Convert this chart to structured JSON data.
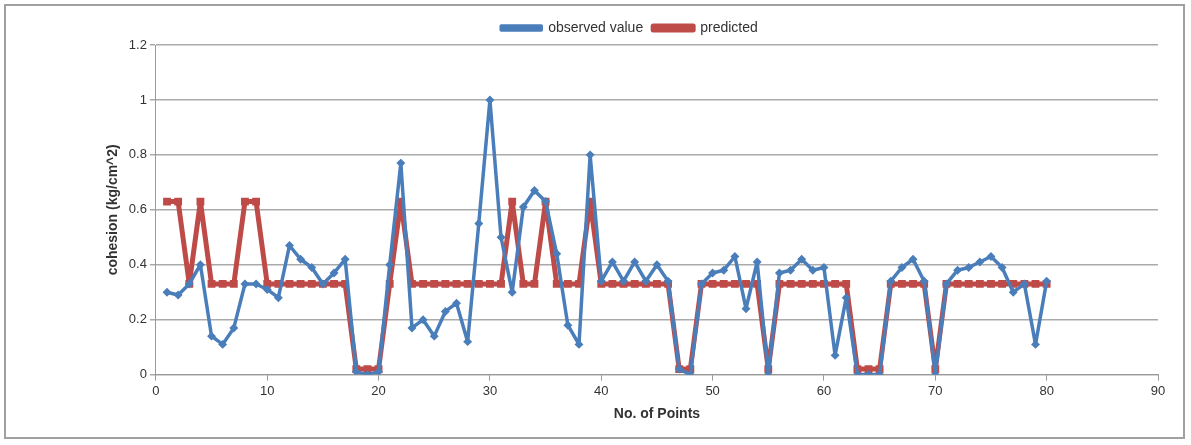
{
  "chart_data": {
    "type": "line",
    "xlabel": "No. of Points",
    "ylabel": "cohesion (kg/cm^2)",
    "x": [
      1,
      2,
      3,
      4,
      5,
      6,
      7,
      8,
      9,
      10,
      11,
      12,
      13,
      14,
      15,
      16,
      17,
      18,
      19,
      20,
      21,
      22,
      23,
      24,
      25,
      26,
      27,
      28,
      29,
      30,
      31,
      32,
      33,
      34,
      35,
      36,
      37,
      38,
      39,
      40,
      41,
      42,
      43,
      44,
      45,
      46,
      47,
      48,
      49,
      50,
      51,
      52,
      53,
      54,
      55,
      56,
      57,
      58,
      59,
      60,
      61,
      62,
      63,
      64,
      65,
      66,
      67,
      68,
      69,
      70,
      71,
      72,
      73,
      74,
      75,
      76,
      77,
      78,
      79,
      80
    ],
    "series": [
      {
        "name": "observed value",
        "color": "#4a7ebb",
        "marker": "diamond",
        "values": [
          0.3,
          0.29,
          0.33,
          0.4,
          0.14,
          0.11,
          0.17,
          0.33,
          0.33,
          0.31,
          0.28,
          0.47,
          0.42,
          0.39,
          0.33,
          0.37,
          0.42,
          0.01,
          0,
          0.01,
          0.4,
          0.77,
          0.17,
          0.2,
          0.14,
          0.23,
          0.26,
          0.12,
          0.55,
          1,
          0.5,
          0.3,
          0.61,
          0.67,
          0.63,
          0.44,
          0.18,
          0.11,
          0.8,
          0.34,
          0.41,
          0.34,
          0.41,
          0.34,
          0.4,
          0.34,
          0.02,
          0,
          0.33,
          0.37,
          0.38,
          0.43,
          0.24,
          0.41,
          0,
          0.37,
          0.38,
          0.42,
          0.38,
          0.39,
          0.07,
          0.28,
          0,
          0,
          0,
          0.34,
          0.39,
          0.42,
          0.34,
          0,
          0.33,
          0.38,
          0.39,
          0.41,
          0.43,
          0.39,
          0.3,
          0.33,
          0.11,
          0.34
        ]
      },
      {
        "name": "predicted",
        "color": "#be4b48",
        "marker": "square",
        "values": [
          0.63,
          0.63,
          0.33,
          0.63,
          0.33,
          0.33,
          0.33,
          0.63,
          0.63,
          0.33,
          0.33,
          0.33,
          0.33,
          0.33,
          0.33,
          0.33,
          0.33,
          0.02,
          0.02,
          0.02,
          0.33,
          0.63,
          0.33,
          0.33,
          0.33,
          0.33,
          0.33,
          0.33,
          0.33,
          0.33,
          0.33,
          0.63,
          0.33,
          0.33,
          0.63,
          0.33,
          0.33,
          0.33,
          0.63,
          0.33,
          0.33,
          0.33,
          0.33,
          0.33,
          0.33,
          0.33,
          0.02,
          0.02,
          0.33,
          0.33,
          0.33,
          0.33,
          0.33,
          0.33,
          0.02,
          0.33,
          0.33,
          0.33,
          0.33,
          0.33,
          0.33,
          0.33,
          0.02,
          0.02,
          0.02,
          0.33,
          0.33,
          0.33,
          0.33,
          0.02,
          0.33,
          0.33,
          0.33,
          0.33,
          0.33,
          0.33,
          0.33,
          0.33,
          0.33,
          0.33
        ]
      }
    ],
    "xlim": [
      0,
      90
    ],
    "xticks": [
      0,
      10,
      20,
      30,
      40,
      50,
      60,
      70,
      80,
      90
    ],
    "ylim": [
      0,
      1.2
    ],
    "yticks": [
      0,
      0.2,
      0.4,
      0.6,
      0.8,
      1,
      1.2
    ],
    "grid": "y",
    "legend": "top",
    "line_style": "solid"
  }
}
